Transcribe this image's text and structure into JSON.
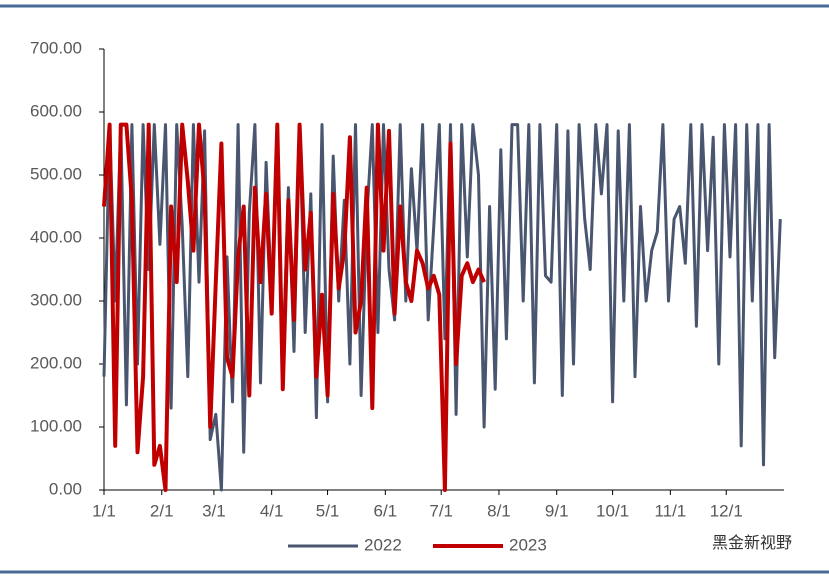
{
  "chart_data": {
    "type": "line",
    "watermark": "黑金新视野",
    "x": [
      0,
      3,
      6,
      9,
      12,
      15,
      18,
      21,
      24,
      27,
      30,
      33,
      36,
      39,
      42,
      45,
      48,
      51,
      54,
      57,
      60,
      63,
      66,
      69,
      72,
      75,
      78,
      81,
      84,
      87,
      90,
      93,
      96,
      99,
      102,
      105,
      108,
      111,
      114,
      117,
      120,
      123,
      126,
      129,
      132,
      135,
      138,
      141,
      144,
      147,
      150,
      153,
      156,
      159,
      162,
      165,
      168,
      171,
      174,
      177,
      180,
      183,
      186,
      189,
      192,
      195,
      198,
      201,
      204,
      207,
      210,
      213,
      216,
      219,
      222,
      225,
      228,
      231,
      234,
      237,
      240,
      243,
      246,
      249,
      252,
      255,
      258,
      261,
      264,
      267,
      270,
      273,
      276,
      279,
      282,
      285,
      288,
      291,
      294,
      297,
      300,
      303,
      306,
      309,
      312,
      315,
      318,
      321,
      324,
      327,
      330,
      333,
      336,
      339,
      342,
      345,
      348,
      351,
      354,
      357,
      360,
      363
    ],
    "xlim": [
      0,
      365
    ],
    "xticks": [
      {
        "value": 0,
        "label": "1/1"
      },
      {
        "value": 31,
        "label": "2/1"
      },
      {
        "value": 59,
        "label": "3/1"
      },
      {
        "value": 90,
        "label": "4/1"
      },
      {
        "value": 120,
        "label": "5/1"
      },
      {
        "value": 151,
        "label": "6/1"
      },
      {
        "value": 181,
        "label": "7/1"
      },
      {
        "value": 212,
        "label": "8/1"
      },
      {
        "value": 243,
        "label": "9/1"
      },
      {
        "value": 273,
        "label": "10/1"
      },
      {
        "value": 304,
        "label": "11/1"
      },
      {
        "value": 334,
        "label": "12/1"
      }
    ],
    "ylim": [
      0,
      700
    ],
    "yticks": [
      {
        "value": 0,
        "label": "0.00"
      },
      {
        "value": 100,
        "label": "100.00"
      },
      {
        "value": 200,
        "label": "200.00"
      },
      {
        "value": 300,
        "label": "300.00"
      },
      {
        "value": 400,
        "label": "400.00"
      },
      {
        "value": 500,
        "label": "500.00"
      },
      {
        "value": 600,
        "label": "600.00"
      },
      {
        "value": 700,
        "label": "700.00"
      }
    ],
    "series": [
      {
        "name": "2022",
        "color": "#4a5670",
        "values": [
          180,
          580,
          300,
          580,
          135,
          580,
          200,
          580,
          350,
          580,
          390,
          580,
          130,
          580,
          420,
          180,
          580,
          330,
          570,
          80,
          120,
          0,
          370,
          140,
          580,
          60,
          440,
          580,
          170,
          520,
          300,
          580,
          200,
          480,
          220,
          580,
          250,
          470,
          115,
          580,
          140,
          530,
          300,
          460,
          200,
          580,
          150,
          430,
          580,
          250,
          580,
          350,
          270,
          580,
          300,
          510,
          380,
          580,
          270,
          420,
          580,
          240,
          580,
          120,
          580,
          370,
          580,
          500,
          100,
          450,
          160,
          540,
          240,
          580,
          580,
          300,
          580,
          170,
          580,
          340,
          330,
          580,
          150,
          570,
          200,
          580,
          430,
          350,
          580,
          470,
          580,
          140,
          570,
          300,
          580,
          180,
          450,
          300,
          380,
          410,
          580,
          300,
          430,
          450,
          360,
          580,
          260,
          580,
          380,
          560,
          200,
          580,
          370,
          580,
          70,
          580,
          300,
          580,
          40,
          580,
          210,
          430
        ]
      },
      {
        "name": "2023",
        "color": "#c00000",
        "values": [
          450,
          580,
          70,
          580,
          580,
          460,
          60,
          180,
          580,
          40,
          70,
          0,
          450,
          330,
          580,
          490,
          380,
          580,
          470,
          100,
          330,
          550,
          210,
          180,
          370,
          450,
          150,
          480,
          330,
          470,
          280,
          580,
          160,
          460,
          270,
          580,
          350,
          440,
          180,
          310,
          150,
          470,
          320,
          380,
          560,
          250,
          300,
          480,
          130,
          580,
          380,
          570,
          280,
          450,
          330,
          300,
          380,
          360,
          320,
          340,
          310,
          0,
          550,
          200,
          340,
          360,
          330,
          350,
          330,
          null,
          null,
          null,
          null,
          null,
          null,
          null,
          null,
          null,
          null,
          null,
          null,
          null,
          null,
          null,
          null,
          null,
          null,
          null,
          null,
          null,
          null,
          null,
          null,
          null,
          null,
          null,
          null,
          null,
          null,
          null,
          null,
          null,
          null,
          null,
          null,
          null,
          null,
          null,
          null,
          null,
          null,
          null,
          null,
          null,
          null,
          null,
          null,
          null,
          null,
          null,
          null,
          null
        ]
      }
    ]
  }
}
